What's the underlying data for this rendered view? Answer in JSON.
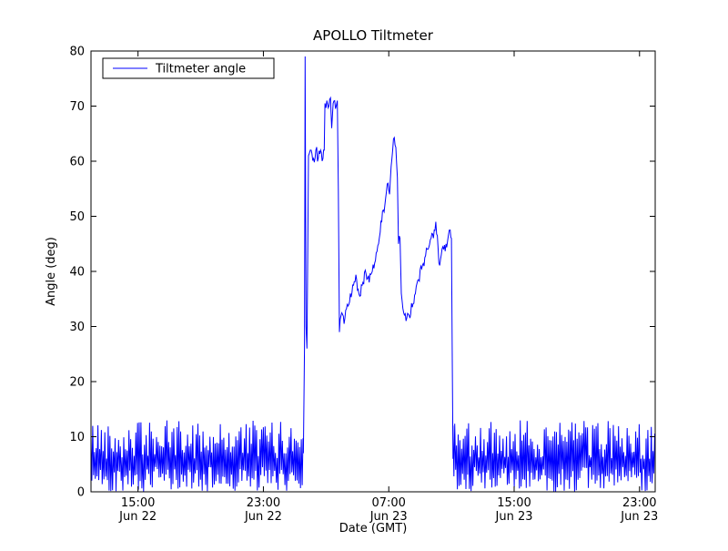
{
  "chart_data": {
    "type": "line",
    "title": "APOLLO Tiltmeter",
    "xlabel": "Date (GMT)",
    "ylabel": "Angle (deg)",
    "ylim": [
      0,
      80
    ],
    "yticks": [
      0,
      10,
      20,
      30,
      40,
      50,
      60,
      70,
      80
    ],
    "x_hours_range": [
      -3,
      33
    ],
    "xticks": [
      {
        "h": 0,
        "time": "15:00",
        "date": "Jun 22"
      },
      {
        "h": 8,
        "time": "23:00",
        "date": "Jun 22"
      },
      {
        "h": 16,
        "time": "07:00",
        "date": "Jun 23"
      },
      {
        "h": 24,
        "time": "15:00",
        "date": "Jun 23"
      },
      {
        "h": 32,
        "time": "23:00",
        "date": "Jun 23"
      }
    ],
    "legend": {
      "position": "upper left",
      "label": "Tiltmeter angle"
    },
    "series": [
      {
        "name": "Tiltmeter angle",
        "color": "#0000ff"
      }
    ],
    "grid": false,
    "noise_amp": 1.2,
    "smooth_slope_limit": 25,
    "noise_segments": [
      {
        "h_start": -3.0,
        "h_end": 10.55,
        "low_min": 0.0,
        "low_max": 4.5,
        "high_min": 6.0,
        "high_max": 13.0
      },
      {
        "h_start": 20.1,
        "h_end": 33.0,
        "low_min": 0.0,
        "low_max": 4.5,
        "high_min": 6.0,
        "high_max": 13.0
      }
    ],
    "keypoints": [
      [
        10.55,
        7
      ],
      [
        10.62,
        26
      ],
      [
        10.66,
        79
      ],
      [
        10.72,
        30
      ],
      [
        10.78,
        26
      ],
      [
        10.88,
        61
      ],
      [
        11.05,
        62
      ],
      [
        11.2,
        60.5
      ],
      [
        11.35,
        62
      ],
      [
        11.5,
        60.5
      ],
      [
        11.65,
        62
      ],
      [
        11.8,
        60.5
      ],
      [
        11.88,
        62
      ],
      [
        11.93,
        70.5
      ],
      [
        12.05,
        71
      ],
      [
        12.18,
        70
      ],
      [
        12.28,
        71.5
      ],
      [
        12.36,
        66
      ],
      [
        12.45,
        70.5
      ],
      [
        12.55,
        71
      ],
      [
        12.65,
        70
      ],
      [
        12.72,
        71
      ],
      [
        12.78,
        55
      ],
      [
        12.85,
        29
      ],
      [
        13.0,
        32.5
      ],
      [
        13.15,
        30.5
      ],
      [
        13.35,
        34
      ],
      [
        13.55,
        36
      ],
      [
        13.75,
        37.5
      ],
      [
        13.95,
        38.5
      ],
      [
        14.15,
        35.5
      ],
      [
        14.35,
        38
      ],
      [
        14.55,
        39.5
      ],
      [
        14.75,
        38
      ],
      [
        14.95,
        40
      ],
      [
        15.15,
        42
      ],
      [
        15.35,
        45
      ],
      [
        15.55,
        49
      ],
      [
        15.75,
        52
      ],
      [
        15.95,
        56
      ],
      [
        16.05,
        54
      ],
      [
        16.15,
        59
      ],
      [
        16.25,
        62
      ],
      [
        16.35,
        64.3
      ],
      [
        16.45,
        62.5
      ],
      [
        16.55,
        57
      ],
      [
        16.62,
        45
      ],
      [
        16.72,
        46
      ],
      [
        16.8,
        36
      ],
      [
        16.95,
        32.5
      ],
      [
        17.1,
        31
      ],
      [
        17.3,
        32
      ],
      [
        17.5,
        33.5
      ],
      [
        17.7,
        36
      ],
      [
        17.9,
        38.5
      ],
      [
        18.1,
        40.5
      ],
      [
        18.3,
        42.5
      ],
      [
        18.5,
        44
      ],
      [
        18.7,
        46
      ],
      [
        18.9,
        47.5
      ],
      [
        19.0,
        49
      ],
      [
        19.1,
        46.5
      ],
      [
        19.2,
        41.5
      ],
      [
        19.35,
        43
      ],
      [
        19.5,
        44
      ],
      [
        19.65,
        45
      ],
      [
        19.8,
        46.5
      ],
      [
        19.92,
        47.5
      ],
      [
        20.0,
        46
      ],
      [
        20.05,
        24
      ],
      [
        20.1,
        6
      ]
    ]
  }
}
